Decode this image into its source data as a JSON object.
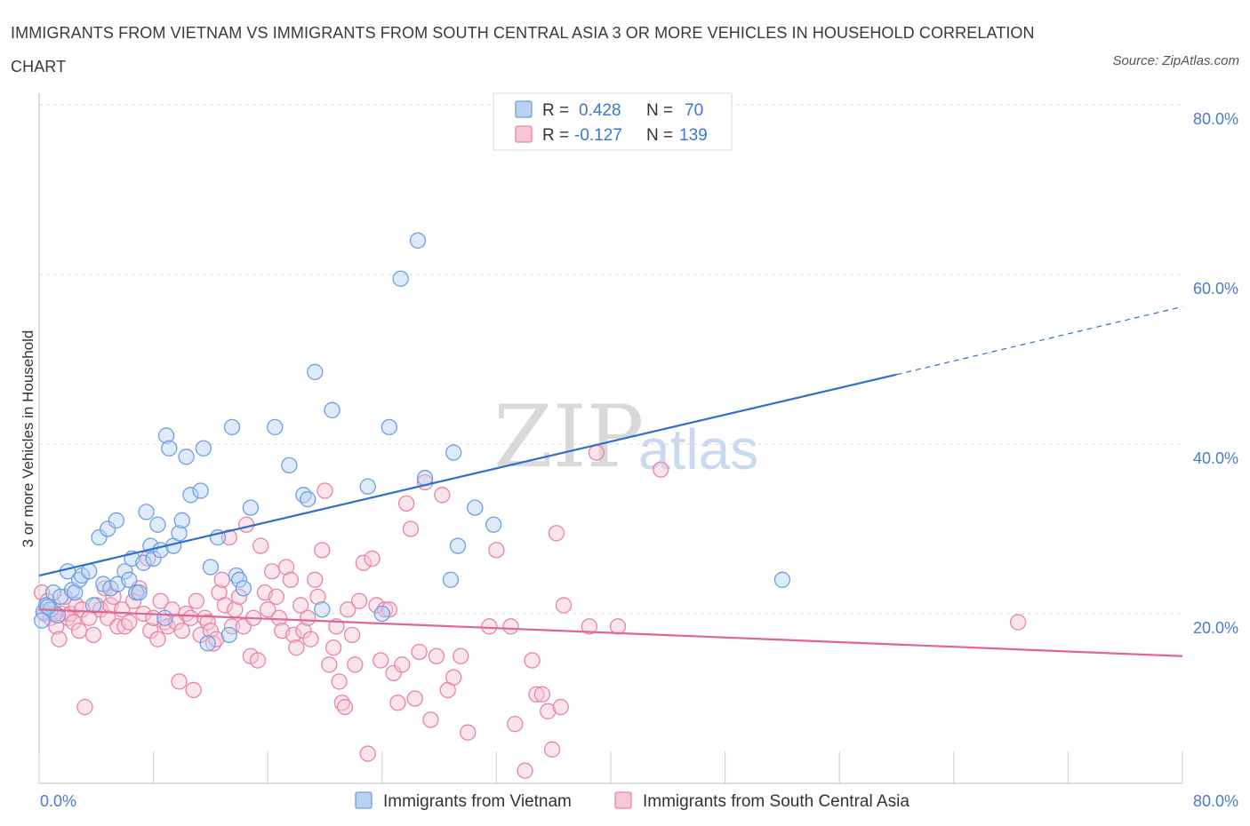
{
  "title": "IMMIGRANTS FROM VIETNAM VS IMMIGRANTS FROM SOUTH CENTRAL ASIA 3 OR MORE VEHICLES IN HOUSEHOLD CORRELATION CHART",
  "source": "Source: ZipAtlas.com",
  "watermark": {
    "part1": "ZIP",
    "part2": "atlas"
  },
  "colors": {
    "vietnam": "#6f9fe0",
    "vietnam_fill": "#b9d2f4",
    "vietnam_line": "#2f6fcc",
    "sca": "#e883a6",
    "sca_fill": "#f7c6d7",
    "sca_line": "#e06692",
    "axis_text": "#4a7cc7",
    "grid": "#d9d9d9"
  },
  "legend": {
    "r_label": "R =",
    "n_label": "N =",
    "rows": [
      {
        "r": "0.428",
        "n": "70"
      },
      {
        "r": "-0.127",
        "n": "139"
      }
    ]
  },
  "chart_data": {
    "type": "scatter",
    "xlabel": "",
    "ylabel": "3 or more Vehicles in Household",
    "xlim": [
      0,
      80
    ],
    "ylim": [
      0,
      80
    ],
    "x_tick_labels": [
      "0.0%",
      "80.0%"
    ],
    "y_ticks": [
      20,
      40,
      60,
      80
    ],
    "y_tick_labels": [
      "20.0%",
      "40.0%",
      "60.0%",
      "80.0%"
    ],
    "grid": true,
    "legend_position": "top-center",
    "series": [
      {
        "name": "Immigrants from Vietnam",
        "trend": {
          "x0": 0,
          "y0": 24.5,
          "x1": 60,
          "y1": 48.2,
          "dash_to_x": 80,
          "dash_to_y": 56.2
        },
        "points": [
          [
            0.3,
            20.2
          ],
          [
            0.5,
            21.0
          ],
          [
            0.8,
            20.5
          ],
          [
            1.0,
            22.5
          ],
          [
            1.3,
            19.8
          ],
          [
            1.5,
            22.0
          ],
          [
            2.0,
            25.0
          ],
          [
            2.3,
            22.8
          ],
          [
            2.5,
            22.5
          ],
          [
            2.8,
            24.0
          ],
          [
            3.0,
            24.5
          ],
          [
            3.5,
            25.0
          ],
          [
            3.8,
            21.0
          ],
          [
            4.2,
            29.0
          ],
          [
            4.5,
            23.5
          ],
          [
            4.8,
            30.0
          ],
          [
            5.0,
            23.0
          ],
          [
            5.4,
            31.0
          ],
          [
            5.5,
            23.5
          ],
          [
            6.0,
            25.0
          ],
          [
            6.3,
            24.0
          ],
          [
            6.5,
            26.5
          ],
          [
            6.8,
            22.5
          ],
          [
            7.0,
            22.5
          ],
          [
            7.3,
            26.0
          ],
          [
            7.5,
            32.0
          ],
          [
            7.8,
            28.0
          ],
          [
            8.0,
            26.5
          ],
          [
            8.3,
            30.5
          ],
          [
            8.5,
            27.5
          ],
          [
            8.8,
            19.5
          ],
          [
            8.9,
            41.0
          ],
          [
            9.1,
            39.5
          ],
          [
            9.4,
            28.0
          ],
          [
            9.8,
            29.5
          ],
          [
            10.0,
            31.0
          ],
          [
            10.3,
            38.5
          ],
          [
            10.6,
            34.0
          ],
          [
            11.3,
            34.5
          ],
          [
            11.5,
            39.5
          ],
          [
            11.8,
            16.5
          ],
          [
            12.0,
            25.5
          ],
          [
            12.5,
            29.0
          ],
          [
            13.3,
            17.5
          ],
          [
            13.5,
            42.0
          ],
          [
            13.8,
            24.5
          ],
          [
            14.0,
            24.0
          ],
          [
            14.3,
            23.0
          ],
          [
            14.8,
            32.5
          ],
          [
            16.5,
            42.0
          ],
          [
            17.5,
            37.5
          ],
          [
            18.5,
            34.0
          ],
          [
            18.8,
            33.5
          ],
          [
            19.3,
            48.5
          ],
          [
            19.8,
            20.5
          ],
          [
            20.5,
            44.0
          ],
          [
            23.0,
            35.0
          ],
          [
            24.0,
            20.0
          ],
          [
            24.5,
            42.0
          ],
          [
            25.3,
            59.5
          ],
          [
            26.5,
            64.0
          ],
          [
            27.0,
            36.0
          ],
          [
            28.8,
            24.0
          ],
          [
            29.0,
            39.0
          ],
          [
            29.3,
            28.0
          ],
          [
            30.5,
            32.5
          ],
          [
            31.8,
            30.5
          ],
          [
            52.0,
            24.0
          ],
          [
            0.2,
            19.2
          ],
          [
            0.6,
            20.8
          ]
        ]
      },
      {
        "name": "Immigrants from South Central Asia",
        "trend": {
          "x0": 0,
          "y0": 20.5,
          "x1": 80,
          "y1": 15.0
        },
        "points": [
          [
            0.2,
            22.5
          ],
          [
            0.4,
            20.0
          ],
          [
            0.6,
            21.5
          ],
          [
            0.8,
            19.5
          ],
          [
            1.0,
            20.5
          ],
          [
            1.2,
            18.5
          ],
          [
            1.4,
            17.0
          ],
          [
            1.6,
            20.0
          ],
          [
            1.8,
            22.0
          ],
          [
            2.0,
            19.5
          ],
          [
            2.2,
            20.0
          ],
          [
            2.4,
            19.0
          ],
          [
            2.6,
            21.0
          ],
          [
            2.8,
            18.0
          ],
          [
            3.0,
            20.5
          ],
          [
            3.2,
            9.0
          ],
          [
            3.5,
            19.5
          ],
          [
            3.8,
            17.5
          ],
          [
            4.0,
            21.0
          ],
          [
            4.3,
            20.5
          ],
          [
            4.6,
            23.0
          ],
          [
            4.8,
            19.5
          ],
          [
            5.0,
            21.0
          ],
          [
            5.2,
            22.0
          ],
          [
            5.5,
            18.5
          ],
          [
            5.8,
            20.5
          ],
          [
            6.0,
            18.5
          ],
          [
            6.3,
            19.0
          ],
          [
            6.6,
            21.5
          ],
          [
            6.8,
            22.5
          ],
          [
            7.0,
            23.0
          ],
          [
            7.3,
            20.0
          ],
          [
            7.6,
            26.5
          ],
          [
            7.8,
            18.0
          ],
          [
            8.0,
            19.5
          ],
          [
            8.3,
            17.0
          ],
          [
            8.5,
            21.5
          ],
          [
            8.8,
            19.0
          ],
          [
            9.0,
            18.5
          ],
          [
            9.3,
            20.5
          ],
          [
            9.6,
            19.0
          ],
          [
            9.8,
            12.0
          ],
          [
            10.0,
            18.0
          ],
          [
            10.3,
            20.0
          ],
          [
            10.6,
            19.5
          ],
          [
            10.8,
            11.0
          ],
          [
            11.0,
            21.5
          ],
          [
            11.3,
            17.5
          ],
          [
            11.6,
            19.5
          ],
          [
            11.8,
            19.0
          ],
          [
            12.0,
            18.0
          ],
          [
            12.2,
            16.5
          ],
          [
            12.4,
            17.0
          ],
          [
            12.6,
            22.5
          ],
          [
            12.8,
            24.0
          ],
          [
            13.0,
            21.0
          ],
          [
            13.3,
            29.0
          ],
          [
            13.5,
            18.5
          ],
          [
            13.7,
            20.5
          ],
          [
            14.0,
            22.0
          ],
          [
            14.3,
            18.5
          ],
          [
            14.5,
            30.5
          ],
          [
            14.8,
            15.0
          ],
          [
            15.0,
            19.5
          ],
          [
            15.3,
            14.5
          ],
          [
            15.5,
            28.0
          ],
          [
            15.8,
            22.5
          ],
          [
            16.0,
            20.5
          ],
          [
            16.3,
            25.0
          ],
          [
            16.6,
            22.0
          ],
          [
            16.8,
            19.5
          ],
          [
            17.0,
            18.0
          ],
          [
            17.3,
            25.5
          ],
          [
            17.6,
            24.0
          ],
          [
            17.8,
            17.5
          ],
          [
            18.0,
            16.0
          ],
          [
            18.3,
            21.0
          ],
          [
            18.5,
            18.0
          ],
          [
            18.8,
            19.5
          ],
          [
            19.0,
            17.0
          ],
          [
            19.3,
            24.0
          ],
          [
            19.5,
            22.0
          ],
          [
            19.8,
            27.5
          ],
          [
            20.0,
            34.5
          ],
          [
            20.3,
            14.0
          ],
          [
            20.6,
            16.0
          ],
          [
            20.8,
            18.5
          ],
          [
            21.0,
            12.0
          ],
          [
            21.2,
            9.5
          ],
          [
            21.4,
            9.0
          ],
          [
            21.6,
            20.5
          ],
          [
            21.9,
            17.5
          ],
          [
            22.1,
            14.0
          ],
          [
            22.4,
            21.5
          ],
          [
            22.7,
            26.0
          ],
          [
            23.0,
            3.5
          ],
          [
            23.3,
            26.5
          ],
          [
            23.6,
            21.0
          ],
          [
            23.9,
            14.5
          ],
          [
            24.2,
            20.5
          ],
          [
            24.5,
            20.5
          ],
          [
            24.8,
            13.0
          ],
          [
            25.1,
            9.5
          ],
          [
            25.4,
            14.0
          ],
          [
            25.7,
            33.0
          ],
          [
            26.0,
            30.0
          ],
          [
            26.3,
            10.0
          ],
          [
            26.6,
            15.5
          ],
          [
            27.0,
            35.5
          ],
          [
            27.4,
            7.5
          ],
          [
            27.8,
            15.0
          ],
          [
            28.2,
            34.0
          ],
          [
            28.6,
            11.0
          ],
          [
            29.0,
            12.5
          ],
          [
            29.5,
            15.0
          ],
          [
            30.0,
            6.0
          ],
          [
            31.5,
            18.5
          ],
          [
            32.0,
            27.5
          ],
          [
            33.0,
            18.5
          ],
          [
            33.3,
            7.0
          ],
          [
            34.0,
            1.5
          ],
          [
            34.5,
            14.5
          ],
          [
            34.8,
            10.5
          ],
          [
            35.2,
            10.5
          ],
          [
            35.6,
            8.5
          ],
          [
            35.9,
            4.0
          ],
          [
            36.2,
            29.5
          ],
          [
            36.5,
            9.0
          ],
          [
            36.7,
            21.0
          ],
          [
            38.5,
            18.5
          ],
          [
            39.0,
            39.0
          ],
          [
            40.5,
            18.5
          ],
          [
            43.5,
            37.0
          ],
          [
            68.5,
            19.0
          ],
          [
            1.1,
            20.0
          ]
        ]
      }
    ]
  },
  "bottom_legend": [
    {
      "label": "Immigrants from Vietnam"
    },
    {
      "label": "Immigrants from South Central Asia"
    }
  ]
}
